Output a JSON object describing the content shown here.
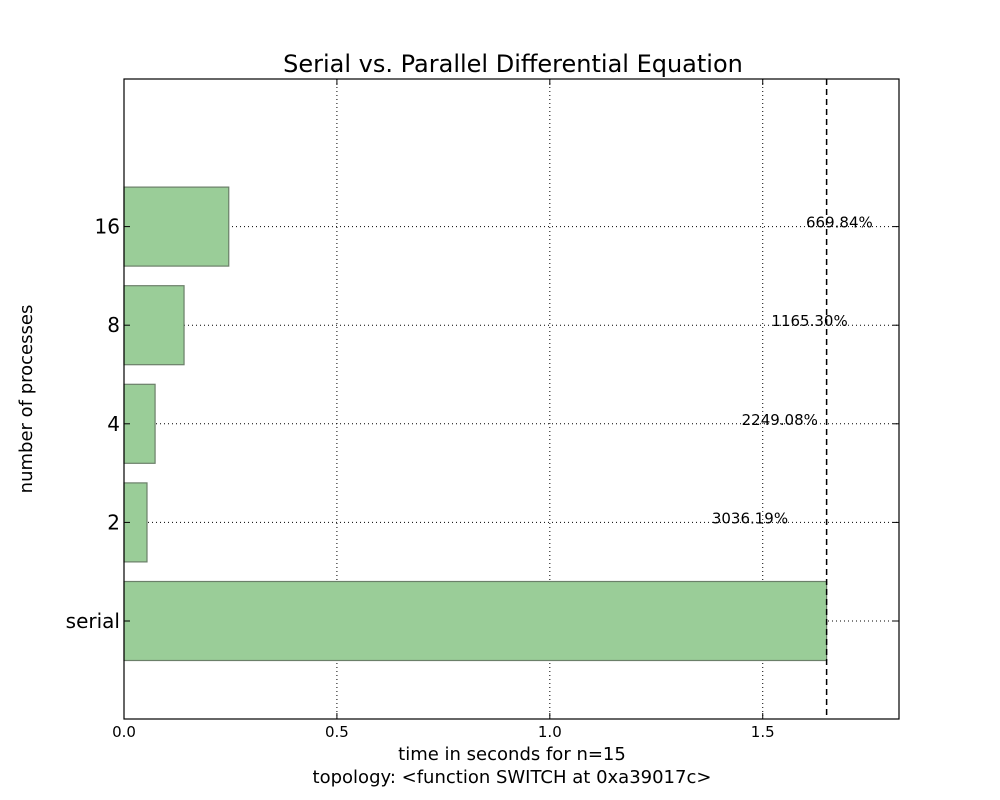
{
  "chart_data": {
    "type": "bar",
    "orientation": "horizontal",
    "title": "Serial vs. Parallel Differential Equation",
    "xlabel": "time in seconds for n=15",
    "xlabel2": "topology: <function SWITCH at 0xa39017c>",
    "ylabel": "number of processes",
    "categories": [
      "serial",
      "2",
      "4",
      "8",
      "16"
    ],
    "values": [
      1.65,
      0.054,
      0.073,
      0.141,
      0.246
    ],
    "annotations": [
      null,
      "3036.19%",
      "2249.08%",
      "1165.30%",
      "669.84%"
    ],
    "reference_line": 1.65,
    "xlim": [
      0,
      1.82
    ],
    "xticks": [
      "0.0",
      "0.5",
      "1.0",
      "1.5"
    ],
    "xtick_values": [
      0,
      0.5,
      1.0,
      1.5
    ],
    "grid": true,
    "bar_color": "#9acd98"
  }
}
